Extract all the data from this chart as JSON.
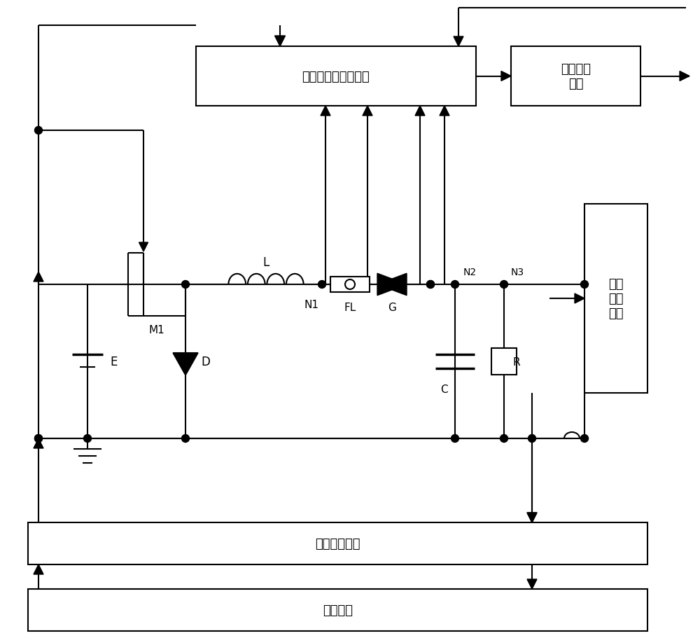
{
  "bg_color": "#ffffff",
  "line_color": "#000000",
  "box_texts": {
    "huahuan": "火花放电恒功率电路",
    "qihu": "起弧触发\n电路",
    "shuchusuojin": "输出\n封锁\n电路",
    "kongzhisuojin": "控制封锁电路",
    "kongzhidianlu": "控制电路"
  },
  "labels": {
    "M1": "M1",
    "E": "E",
    "D": "D",
    "L": "L",
    "N1": "N1",
    "FL": "FL",
    "G": "G",
    "N2": "N2",
    "N3": "N3",
    "C": "C",
    "R": "R"
  }
}
